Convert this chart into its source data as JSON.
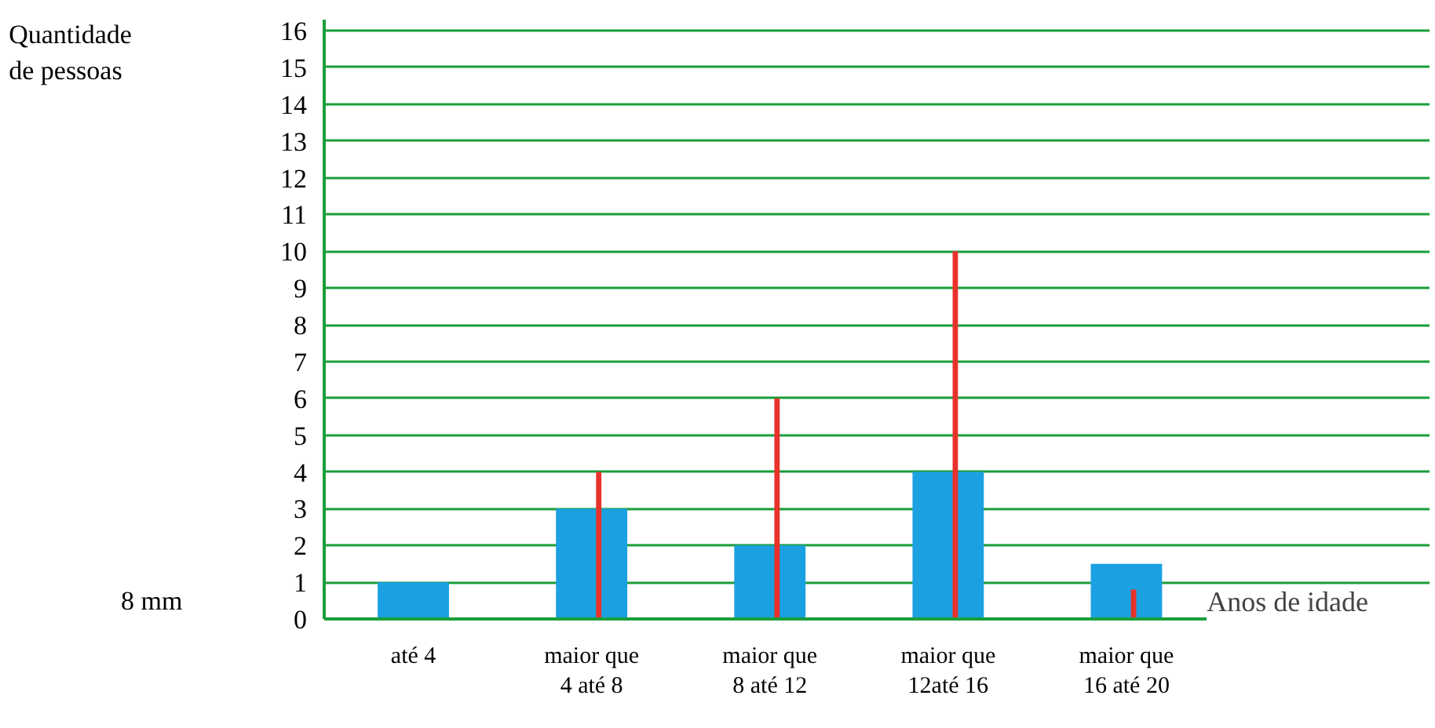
{
  "chart_data": {
    "type": "bar",
    "xlabel": "Anos de idade",
    "categories": [
      "até 4",
      "maior que\n4 até 8",
      "maior que\n8 até 12",
      "maior que\n12até 16",
      "maior que\n16 até 20"
    ],
    "series": [
      {
        "color": "#1ba1e2",
        "values": [
          1,
          3,
          2,
          4,
          1.5
        ]
      },
      {
        "color": "#e8322b",
        "values": [
          0,
          4,
          6,
          10,
          0.8
        ]
      }
    ],
    "ylim": [
      0,
      16.3
    ],
    "yticks": [
      0,
      1,
      2,
      3,
      4,
      5,
      6,
      7,
      8,
      9,
      10,
      11,
      12,
      13,
      14,
      15,
      16
    ],
    "grid": "y",
    "annotations": [
      "Quantidade\nde pessoas",
      "8 mm"
    ]
  }
}
